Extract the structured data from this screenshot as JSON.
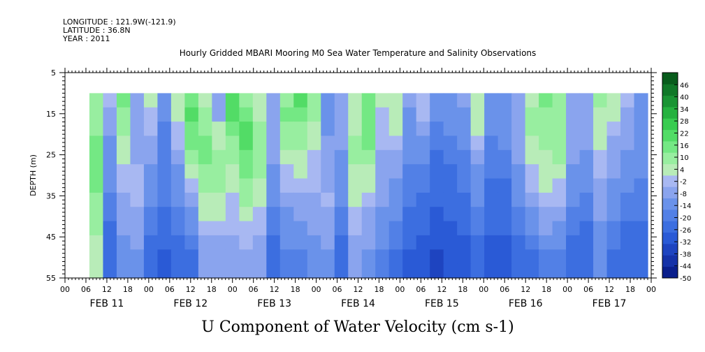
{
  "header": {
    "longitude": "LONGITUDE : 121.9W(-121.9)",
    "latitude": "LATITUDE : 36.8N",
    "year": "YEAR : 2011",
    "title": "Hourly Gridded MBARI Mooring M0 Sea Water Temperature and Salinity Observations"
  },
  "chart_data": {
    "type": "heatmap",
    "title": "U Component of Water Velocity (cm s-1)",
    "ylabel": "DEPTH (m)",
    "xlabel": "",
    "ylim": [
      55,
      5
    ],
    "y_ticks": [
      "5",
      "15",
      "25",
      "35",
      "45",
      "55"
    ],
    "x_ticks": [
      "00",
      "06",
      "12",
      "18",
      "00",
      "06",
      "12",
      "18",
      "00",
      "06",
      "12",
      "18",
      "00",
      "06",
      "12",
      "18",
      "00",
      "06",
      "12",
      "18",
      "00",
      "06",
      "12",
      "18",
      "00",
      "06",
      "12",
      "18",
      "00"
    ],
    "day_labels": [
      "FEB 11",
      "FEB 12",
      "FEB 13",
      "FEB 14",
      "FEB 15",
      "FEB 16",
      "FEB 17"
    ],
    "x_range_hours": [
      0,
      168
    ],
    "data_start_hour": 7,
    "data_end_hour": 167,
    "depth_range_data": [
      10,
      55
    ],
    "colorbar_labels": [
      "46",
      "40",
      "34",
      "28",
      "22",
      "16",
      "10",
      "4",
      "-2",
      "-8",
      "-14",
      "-20",
      "-26",
      "-32",
      "-38",
      "-44",
      "-50"
    ],
    "colorbar_range": [
      -50,
      52
    ],
    "value_field": [
      [
        8,
        -4,
        14,
        -6,
        2,
        -14,
        6,
        16,
        4,
        -8,
        20,
        12,
        4,
        -10,
        12,
        18,
        8,
        -12,
        -6,
        6,
        14,
        2,
        6,
        -10,
        0,
        -14,
        -12,
        -10,
        6,
        -14,
        -16,
        -10,
        6,
        14,
        12,
        -6,
        -8,
        8,
        4,
        -4,
        -12
      ],
      [
        8,
        -8,
        10,
        -8,
        -2,
        -16,
        4,
        18,
        8,
        -6,
        20,
        16,
        6,
        -8,
        14,
        16,
        8,
        -12,
        -8,
        4,
        16,
        0,
        4,
        -12,
        -4,
        -16,
        -14,
        -12,
        6,
        -16,
        -16,
        -10,
        8,
        12,
        12,
        -8,
        -8,
        6,
        2,
        -6,
        -12
      ],
      [
        10,
        -10,
        8,
        -8,
        -4,
        -18,
        0,
        16,
        12,
        2,
        16,
        18,
        8,
        -8,
        12,
        12,
        4,
        -12,
        -10,
        6,
        16,
        -2,
        2,
        -14,
        -8,
        -18,
        -16,
        -14,
        2,
        -16,
        -16,
        -10,
        8,
        10,
        12,
        -8,
        -10,
        4,
        -4,
        -8,
        -12
      ],
      [
        14,
        -12,
        6,
        -6,
        -8,
        -20,
        -4,
        14,
        14,
        6,
        12,
        18,
        10,
        -8,
        8,
        10,
        2,
        -10,
        -10,
        8,
        14,
        -4,
        -2,
        -16,
        -12,
        -20,
        -18,
        -16,
        -4,
        -18,
        -16,
        -10,
        6,
        8,
        10,
        -8,
        -10,
        2,
        -6,
        -10,
        -14
      ],
      [
        16,
        -14,
        2,
        -6,
        -10,
        -20,
        -8,
        10,
        14,
        8,
        8,
        16,
        10,
        -10,
        4,
        6,
        0,
        -8,
        -12,
        8,
        10,
        -6,
        -6,
        -16,
        -16,
        -22,
        -20,
        -18,
        -8,
        -18,
        -18,
        -10,
        4,
        6,
        8,
        -10,
        -12,
        0,
        -8,
        -12,
        -14
      ],
      [
        16,
        -14,
        -2,
        -4,
        -12,
        -18,
        -12,
        4,
        12,
        10,
        4,
        14,
        8,
        -12,
        0,
        2,
        -2,
        -8,
        -14,
        6,
        6,
        -8,
        -10,
        -18,
        -18,
        -24,
        -22,
        -20,
        -12,
        -20,
        -20,
        -12,
        0,
        4,
        4,
        -12,
        -14,
        -4,
        -10,
        -14,
        -16
      ],
      [
        14,
        -16,
        -4,
        -4,
        -14,
        -18,
        -14,
        -2,
        10,
        8,
        2,
        12,
        6,
        -14,
        -4,
        -2,
        -4,
        -6,
        -14,
        4,
        2,
        -10,
        -12,
        -18,
        -20,
        -24,
        -24,
        -20,
        -14,
        -22,
        -22,
        -14,
        -4,
        2,
        0,
        -14,
        -16,
        -6,
        -12,
        -16,
        -18
      ],
      [
        12,
        -18,
        -6,
        -4,
        -16,
        -20,
        -16,
        -8,
        6,
        6,
        0,
        8,
        4,
        -16,
        -8,
        -6,
        -6,
        -4,
        -16,
        2,
        -2,
        -10,
        -14,
        -20,
        -22,
        -26,
        -24,
        -22,
        -16,
        -22,
        -22,
        -16,
        -8,
        -2,
        -4,
        -16,
        -18,
        -8,
        -14,
        -18,
        -20
      ],
      [
        10,
        -20,
        -8,
        -6,
        -18,
        -22,
        -18,
        -12,
        2,
        2,
        -2,
        4,
        0,
        -18,
        -12,
        -10,
        -8,
        -6,
        -18,
        0,
        -6,
        -12,
        -16,
        -22,
        -24,
        -28,
        -26,
        -24,
        -18,
        -24,
        -24,
        -18,
        -12,
        -6,
        -8,
        -18,
        -20,
        -10,
        -16,
        -20,
        -20
      ],
      [
        8,
        -22,
        -10,
        -8,
        -20,
        -24,
        -20,
        -16,
        -2,
        -2,
        -4,
        0,
        -4,
        -20,
        -14,
        -14,
        -10,
        -8,
        -20,
        -4,
        -8,
        -14,
        -18,
        -24,
        -26,
        -30,
        -28,
        -26,
        -20,
        -26,
        -26,
        -20,
        -16,
        -10,
        -12,
        -20,
        -22,
        -12,
        -18,
        -22,
        -22
      ],
      [
        6,
        -24,
        -12,
        -10,
        -22,
        -26,
        -22,
        -20,
        -6,
        -6,
        -6,
        -4,
        -8,
        -22,
        -16,
        -16,
        -12,
        -10,
        -22,
        -8,
        -10,
        -16,
        -20,
        -26,
        -28,
        -32,
        -30,
        -28,
        -22,
        -28,
        -28,
        -22,
        -20,
        -14,
        -16,
        -24,
        -24,
        -14,
        -20,
        -24,
        -24
      ],
      [
        4,
        -26,
        -14,
        -12,
        -24,
        -28,
        -24,
        -22,
        -10,
        -10,
        -8,
        -6,
        -10,
        -24,
        -18,
        -18,
        -14,
        -12,
        -24,
        -10,
        -12,
        -18,
        -22,
        -28,
        -30,
        -34,
        -32,
        -30,
        -24,
        -30,
        -30,
        -24,
        -24,
        -18,
        -20,
        -26,
        -26,
        -16,
        -22,
        -26,
        -26
      ],
      [
        2,
        -26,
        -14,
        -12,
        -24,
        -28,
        -24,
        -22,
        -10,
        -10,
        -8,
        -6,
        -10,
        -24,
        -18,
        -18,
        -14,
        -12,
        -24,
        -10,
        -12,
        -18,
        -22,
        -28,
        -30,
        -34,
        -32,
        -30,
        -24,
        -30,
        -30,
        -24,
        -24,
        -18,
        -20,
        -26,
        -26,
        -16,
        -22,
        -26,
        -26
      ]
    ]
  }
}
